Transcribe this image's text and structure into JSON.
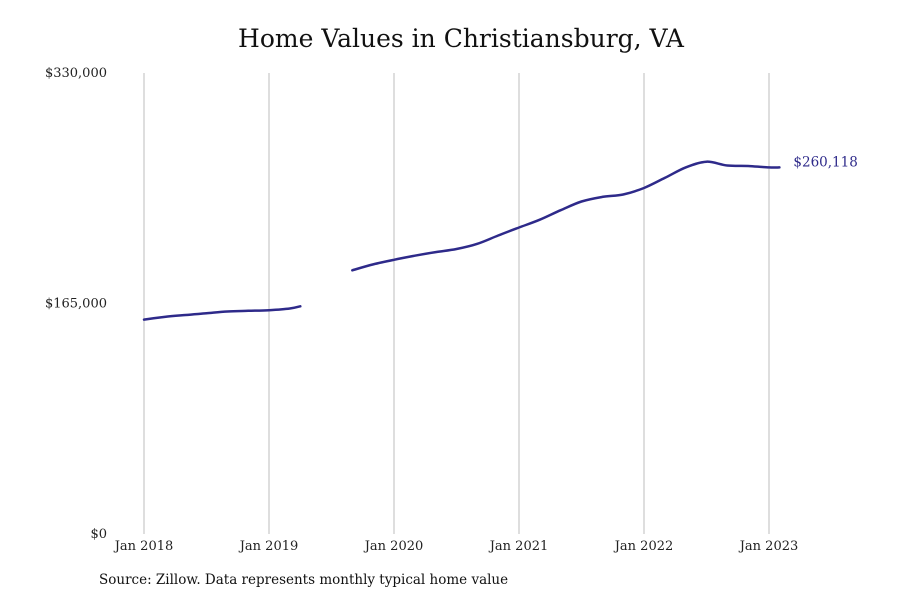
{
  "title": "Home Values in Christiansburg, VA",
  "source": "Source: Zillow. Data represents monthly typical home value",
  "colors": {
    "line": "#2e2a8a",
    "grid": "#bdbdbd",
    "text": "#222222"
  },
  "chart_data": {
    "type": "line",
    "title": "Home Values in Christiansburg, VA",
    "xlabel": "",
    "ylabel": "",
    "ylim": [
      0,
      330000
    ],
    "xlim": [
      "2018-01",
      "2023-03"
    ],
    "grid": "vertical",
    "y_ticks": [
      {
        "value": 0,
        "label": "$0"
      },
      {
        "value": 165000,
        "label": "$165,000"
      },
      {
        "value": 330000,
        "label": "$330,000"
      }
    ],
    "x_ticks": [
      {
        "date": "2018-01",
        "label": "Jan 2018"
      },
      {
        "date": "2019-01",
        "label": "Jan 2019"
      },
      {
        "date": "2020-01",
        "label": "Jan 2020"
      },
      {
        "date": "2021-01",
        "label": "Jan 2021"
      },
      {
        "date": "2022-01",
        "label": "Jan 2022"
      },
      {
        "date": "2023-01",
        "label": "Jan 2023"
      }
    ],
    "end_label": "$260,118",
    "series": [
      {
        "segments": [
          [
            [
              "2018-01",
              153500
            ],
            [
              "2018-03",
              155400
            ],
            [
              "2018-05",
              156800
            ],
            [
              "2018-07",
              158000
            ],
            [
              "2018-09",
              159300
            ],
            [
              "2018-11",
              159800
            ],
            [
              "2019-01",
              160200
            ],
            [
              "2019-03",
              161400
            ],
            [
              "2019-04",
              163000
            ]
          ],
          [
            [
              "2019-09",
              188800
            ],
            [
              "2019-11",
              193000
            ],
            [
              "2020-01",
              196300
            ],
            [
              "2020-03",
              199200
            ],
            [
              "2020-05",
              201800
            ],
            [
              "2020-07",
              204000
            ],
            [
              "2020-09",
              207700
            ],
            [
              "2020-11",
              213700
            ],
            [
              "2021-01",
              219400
            ],
            [
              "2021-03",
              225000
            ],
            [
              "2021-05",
              231800
            ],
            [
              "2021-07",
              238000
            ],
            [
              "2021-09",
              241300
            ],
            [
              "2021-11",
              243000
            ],
            [
              "2022-01",
              247700
            ],
            [
              "2022-03",
              254900
            ],
            [
              "2022-05",
              262400
            ],
            [
              "2022-07",
              266500
            ],
            [
              "2022-09",
              263800
            ],
            [
              "2022-11",
              263400
            ],
            [
              "2023-01",
              262400
            ],
            [
              "2023-02",
              262400
            ]
          ]
        ]
      }
    ]
  }
}
